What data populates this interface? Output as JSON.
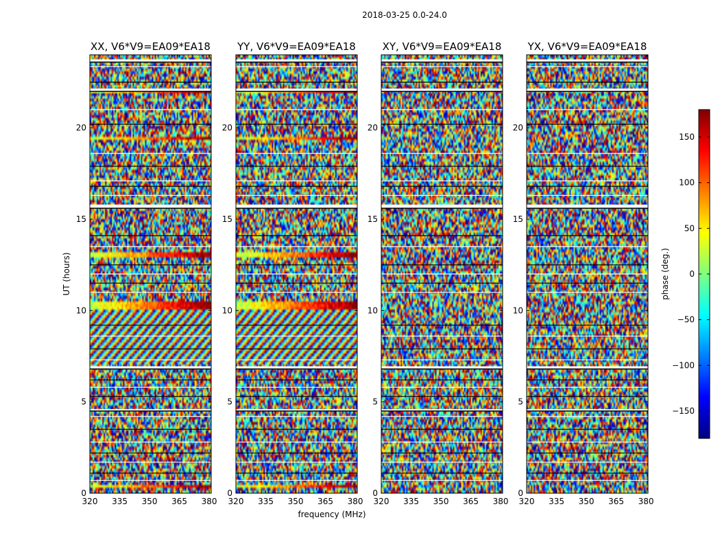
{
  "figure": {
    "suptitle": "2018-03-25 0.0-24.0"
  },
  "chart_data": {
    "type": "heatmap",
    "ylabel": "UT (hours)",
    "xlabel": "frequency (MHz)",
    "ylim": [
      0,
      24
    ],
    "xlim": [
      320,
      381
    ],
    "xticks": [
      320,
      335,
      350,
      365,
      380
    ],
    "yticks": [
      0,
      5,
      10,
      15,
      20
    ],
    "colorbar": {
      "label": "phase (deg.)",
      "range": [
        -180,
        180
      ],
      "ticks": [
        -150,
        -100,
        -50,
        0,
        50,
        100,
        150
      ],
      "colormap": "jet",
      "colors": [
        "#00007f",
        "#0000ff",
        "#007fff",
        "#00ffff",
        "#7fff7f",
        "#ffff00",
        "#ff7f00",
        "#ff0000",
        "#7f0000"
      ]
    },
    "panels": [
      {
        "title": "XX, V6*V9=EA09*EA18",
        "pol": "XX"
      },
      {
        "title": "YY, V6*V9=EA09*EA18",
        "pol": "YY"
      },
      {
        "title": "XY, V6*V9=EA09*EA18",
        "pol": "XY"
      },
      {
        "title": "YX, V6*V9=EA09*EA18",
        "pol": "YX"
      }
    ],
    "blank_bands_hours": [
      [
        23.6,
        23.75
      ],
      [
        22.0,
        22.15
      ],
      [
        15.6,
        15.8
      ],
      [
        6.8,
        6.95
      ],
      [
        4.5,
        4.6
      ]
    ],
    "strong_bands_hours": [
      [
        21.9,
        22.1
      ],
      [
        19.3,
        19.5
      ],
      [
        12.9,
        13.2
      ],
      [
        10.1,
        10.5
      ],
      [
        0.3,
        0.5
      ]
    ]
  }
}
